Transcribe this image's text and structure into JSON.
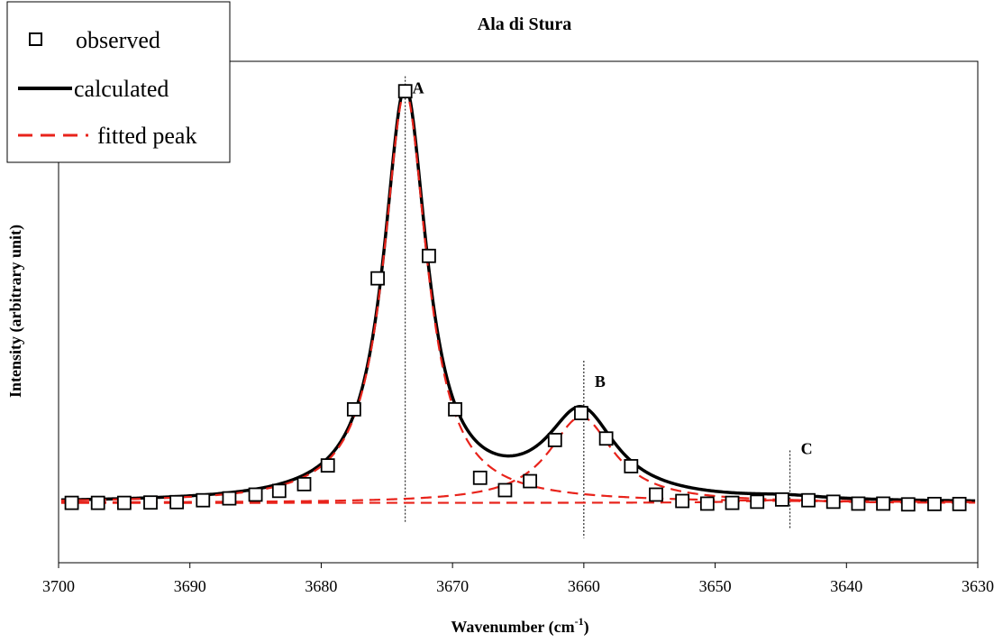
{
  "chart_data": {
    "type": "line",
    "title": "Ala di Stura",
    "xlabel": "Wavenumber (cm",
    "xlabel_sup": "-1",
    "xlabel_suffix": ")",
    "ylabel": "Intensity (arbitrary unit)",
    "xlim": [
      3700,
      3630
    ],
    "x_reversed": true,
    "xticks": [
      3700,
      3690,
      3680,
      3670,
      3660,
      3650,
      3640,
      3630
    ],
    "ylim": [
      -0.16,
      1.18
    ],
    "grid": false,
    "legend_position": "top-left",
    "series": [
      {
        "name": "observed",
        "style": "square-marker",
        "color": "#000000",
        "x": [
          3699.0,
          3697.0,
          3695.0,
          3693.0,
          3691.0,
          3689.0,
          3687.0,
          3685.0,
          3683.2,
          3681.3,
          3679.5,
          3677.5,
          3675.7,
          3673.6,
          3671.8,
          3669.8,
          3667.9,
          3666.0,
          3664.1,
          3662.2,
          3660.2,
          3658.3,
          3656.4,
          3654.5,
          3652.5,
          3650.6,
          3648.7,
          3646.8,
          3644.9,
          3642.9,
          3641.0,
          3639.1,
          3637.2,
          3635.3,
          3633.3,
          3631.4
        ],
        "y": [
          0.0,
          0.0,
          0.0,
          0.001,
          0.002,
          0.007,
          0.012,
          0.022,
          0.032,
          0.05,
          0.1,
          0.25,
          0.6,
          1.1,
          0.66,
          0.25,
          0.067,
          0.034,
          0.058,
          0.168,
          0.24,
          0.172,
          0.098,
          0.022,
          0.005,
          -0.002,
          0.0,
          0.003,
          0.009,
          0.007,
          0.003,
          -0.002,
          -0.002,
          -0.004,
          -0.003,
          -0.003
        ]
      },
      {
        "name": "calculated",
        "style": "solid",
        "color": "#000000",
        "peaks": [
          {
            "center": 3673.6,
            "height": 1.1,
            "hwhm": 2.0
          },
          {
            "center": 3660.2,
            "height": 0.233,
            "hwhm": 3.2
          },
          {
            "center": 3644.6,
            "height": 0.008,
            "hwhm": 3.5
          }
        ]
      },
      {
        "name": "fitted peak",
        "style": "dashed",
        "color": "#e8231b",
        "peaks": [
          {
            "center": 3673.6,
            "height": 1.1,
            "hwhm": 2.0
          },
          {
            "center": 3660.2,
            "height": 0.23,
            "hwhm": 3.0
          },
          {
            "center": 3644.6,
            "height": 0.008,
            "hwhm": 3.5
          }
        ]
      }
    ],
    "annotations": [
      {
        "label": "A",
        "x": 3673.6
      },
      {
        "label": "B",
        "x": 3660.0
      },
      {
        "label": "C",
        "x": 3644.3
      }
    ]
  }
}
